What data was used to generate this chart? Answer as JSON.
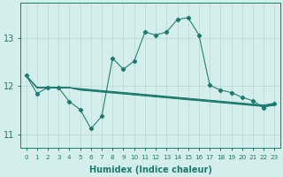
{
  "xlabel": "Humidex (Indice chaleur)",
  "x": [
    0,
    1,
    2,
    3,
    4,
    5,
    6,
    7,
    8,
    9,
    10,
    11,
    12,
    13,
    14,
    15,
    16,
    17,
    18,
    19,
    20,
    21,
    22,
    23
  ],
  "main_line": [
    12.22,
    11.85,
    11.97,
    11.97,
    11.68,
    11.52,
    11.12,
    11.38,
    12.58,
    12.35,
    12.52,
    13.12,
    13.06,
    13.12,
    13.38,
    13.42,
    13.06,
    12.02,
    11.92,
    11.87,
    11.77,
    11.7,
    11.55,
    11.65
  ],
  "trend1": [
    12.22,
    11.97,
    11.97,
    11.97,
    11.97,
    11.95,
    11.93,
    11.91,
    11.89,
    11.87,
    11.85,
    11.83,
    11.81,
    11.79,
    11.77,
    11.75,
    11.73,
    11.71,
    11.69,
    11.67,
    11.65,
    11.63,
    11.61,
    11.65
  ],
  "trend2": [
    12.22,
    11.97,
    11.97,
    11.97,
    11.97,
    11.94,
    11.92,
    11.9,
    11.88,
    11.86,
    11.84,
    11.82,
    11.8,
    11.78,
    11.76,
    11.74,
    11.72,
    11.7,
    11.68,
    11.66,
    11.64,
    11.62,
    11.6,
    11.63
  ],
  "trend3": [
    12.22,
    11.97,
    11.97,
    11.97,
    11.97,
    11.93,
    11.91,
    11.89,
    11.87,
    11.85,
    11.83,
    11.81,
    11.79,
    11.77,
    11.75,
    11.73,
    11.71,
    11.69,
    11.67,
    11.65,
    11.63,
    11.61,
    11.59,
    11.62
  ],
  "trend4": [
    12.22,
    11.97,
    11.97,
    11.97,
    11.97,
    11.92,
    11.9,
    11.88,
    11.86,
    11.84,
    11.82,
    11.8,
    11.78,
    11.76,
    11.74,
    11.72,
    11.7,
    11.68,
    11.66,
    11.64,
    11.62,
    11.6,
    11.58,
    11.6
  ],
  "line_color": "#1a7a6e",
  "bg_color": "#d4eeec",
  "grid_color": "#b8d8d5",
  "ylim": [
    10.72,
    13.72
  ],
  "yticks": [
    11,
    12,
    13
  ],
  "xlim": [
    -0.5,
    23.5
  ]
}
